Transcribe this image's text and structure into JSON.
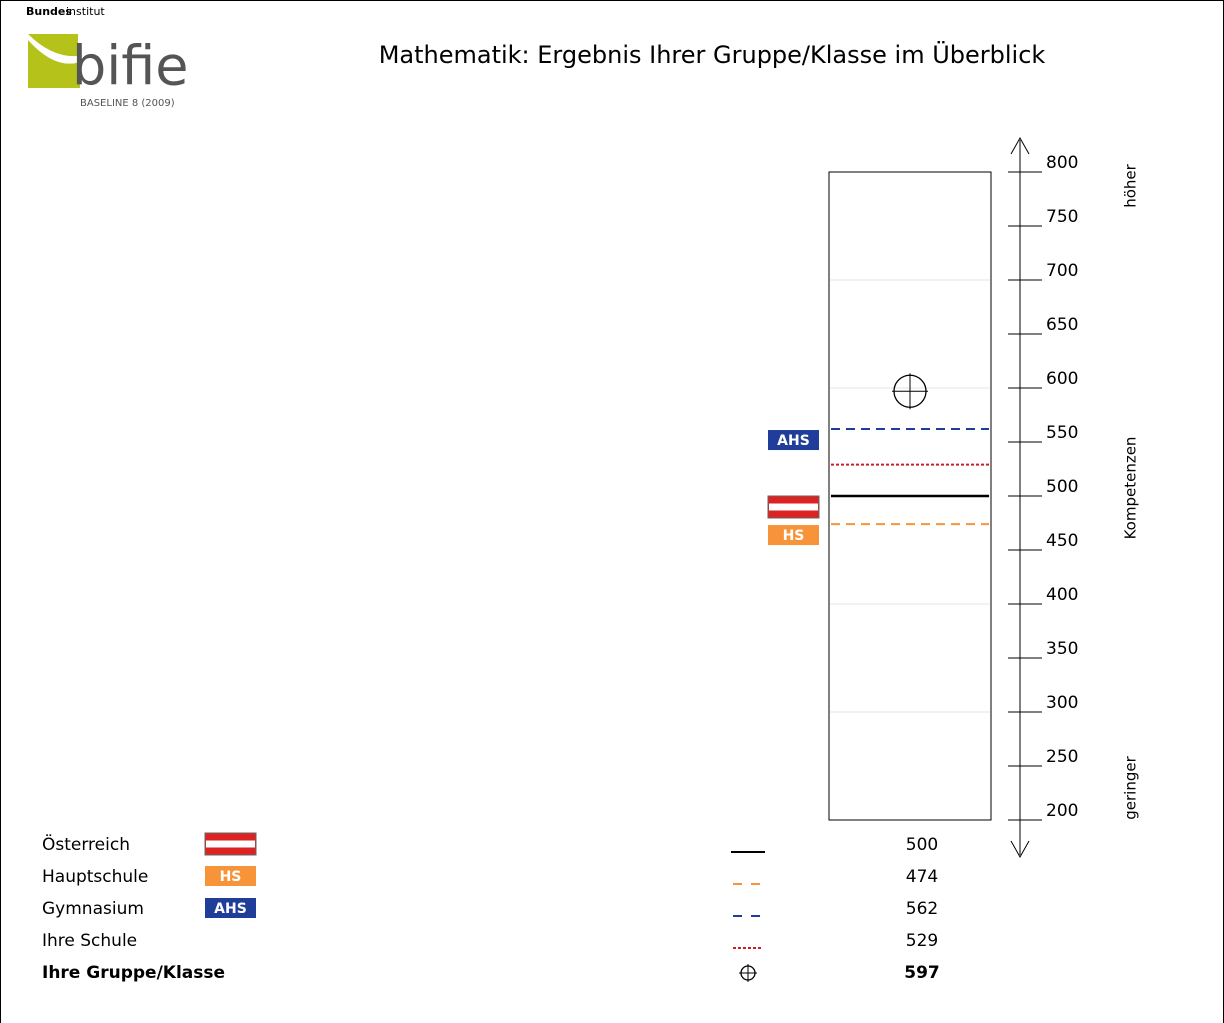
{
  "header": {
    "brand_bold": "Bundes",
    "brand": "institut",
    "name": "bifie",
    "edition": "BASELINE 8 (2009)"
  },
  "chart_data": {
    "type": "scale",
    "title": "Mathematik: Ergebnis Ihrer Gruppe/Klasse im Überblick",
    "axis_top": "höher",
    "axis_label": "Kompetenzen",
    "axis_bottom": "geringer",
    "ylim": [
      200,
      800
    ],
    "yticks": [
      200,
      250,
      300,
      350,
      400,
      450,
      500,
      550,
      600,
      650,
      700,
      750,
      800
    ],
    "series": [
      {
        "name": "Österreich",
        "color": "#000000",
        "style": "solid",
        "badge": "flag",
        "values": [
          500
        ]
      },
      {
        "name": "Hauptschule",
        "color": "#f7943a",
        "style": "dashed",
        "badge": "HS",
        "values": [
          474
        ]
      },
      {
        "name": "Gymnasium",
        "color": "#1f3d99",
        "style": "dashed",
        "badge": "AHS",
        "values": [
          562
        ]
      },
      {
        "name": "Ihre Schule",
        "color": "#c8202a",
        "style": "dotted",
        "values": [
          529
        ]
      },
      {
        "name": "Ihre Gruppe/Klasse",
        "color": "#000000",
        "style": "crosshair",
        "bold": true,
        "values": [
          597
        ]
      }
    ]
  }
}
